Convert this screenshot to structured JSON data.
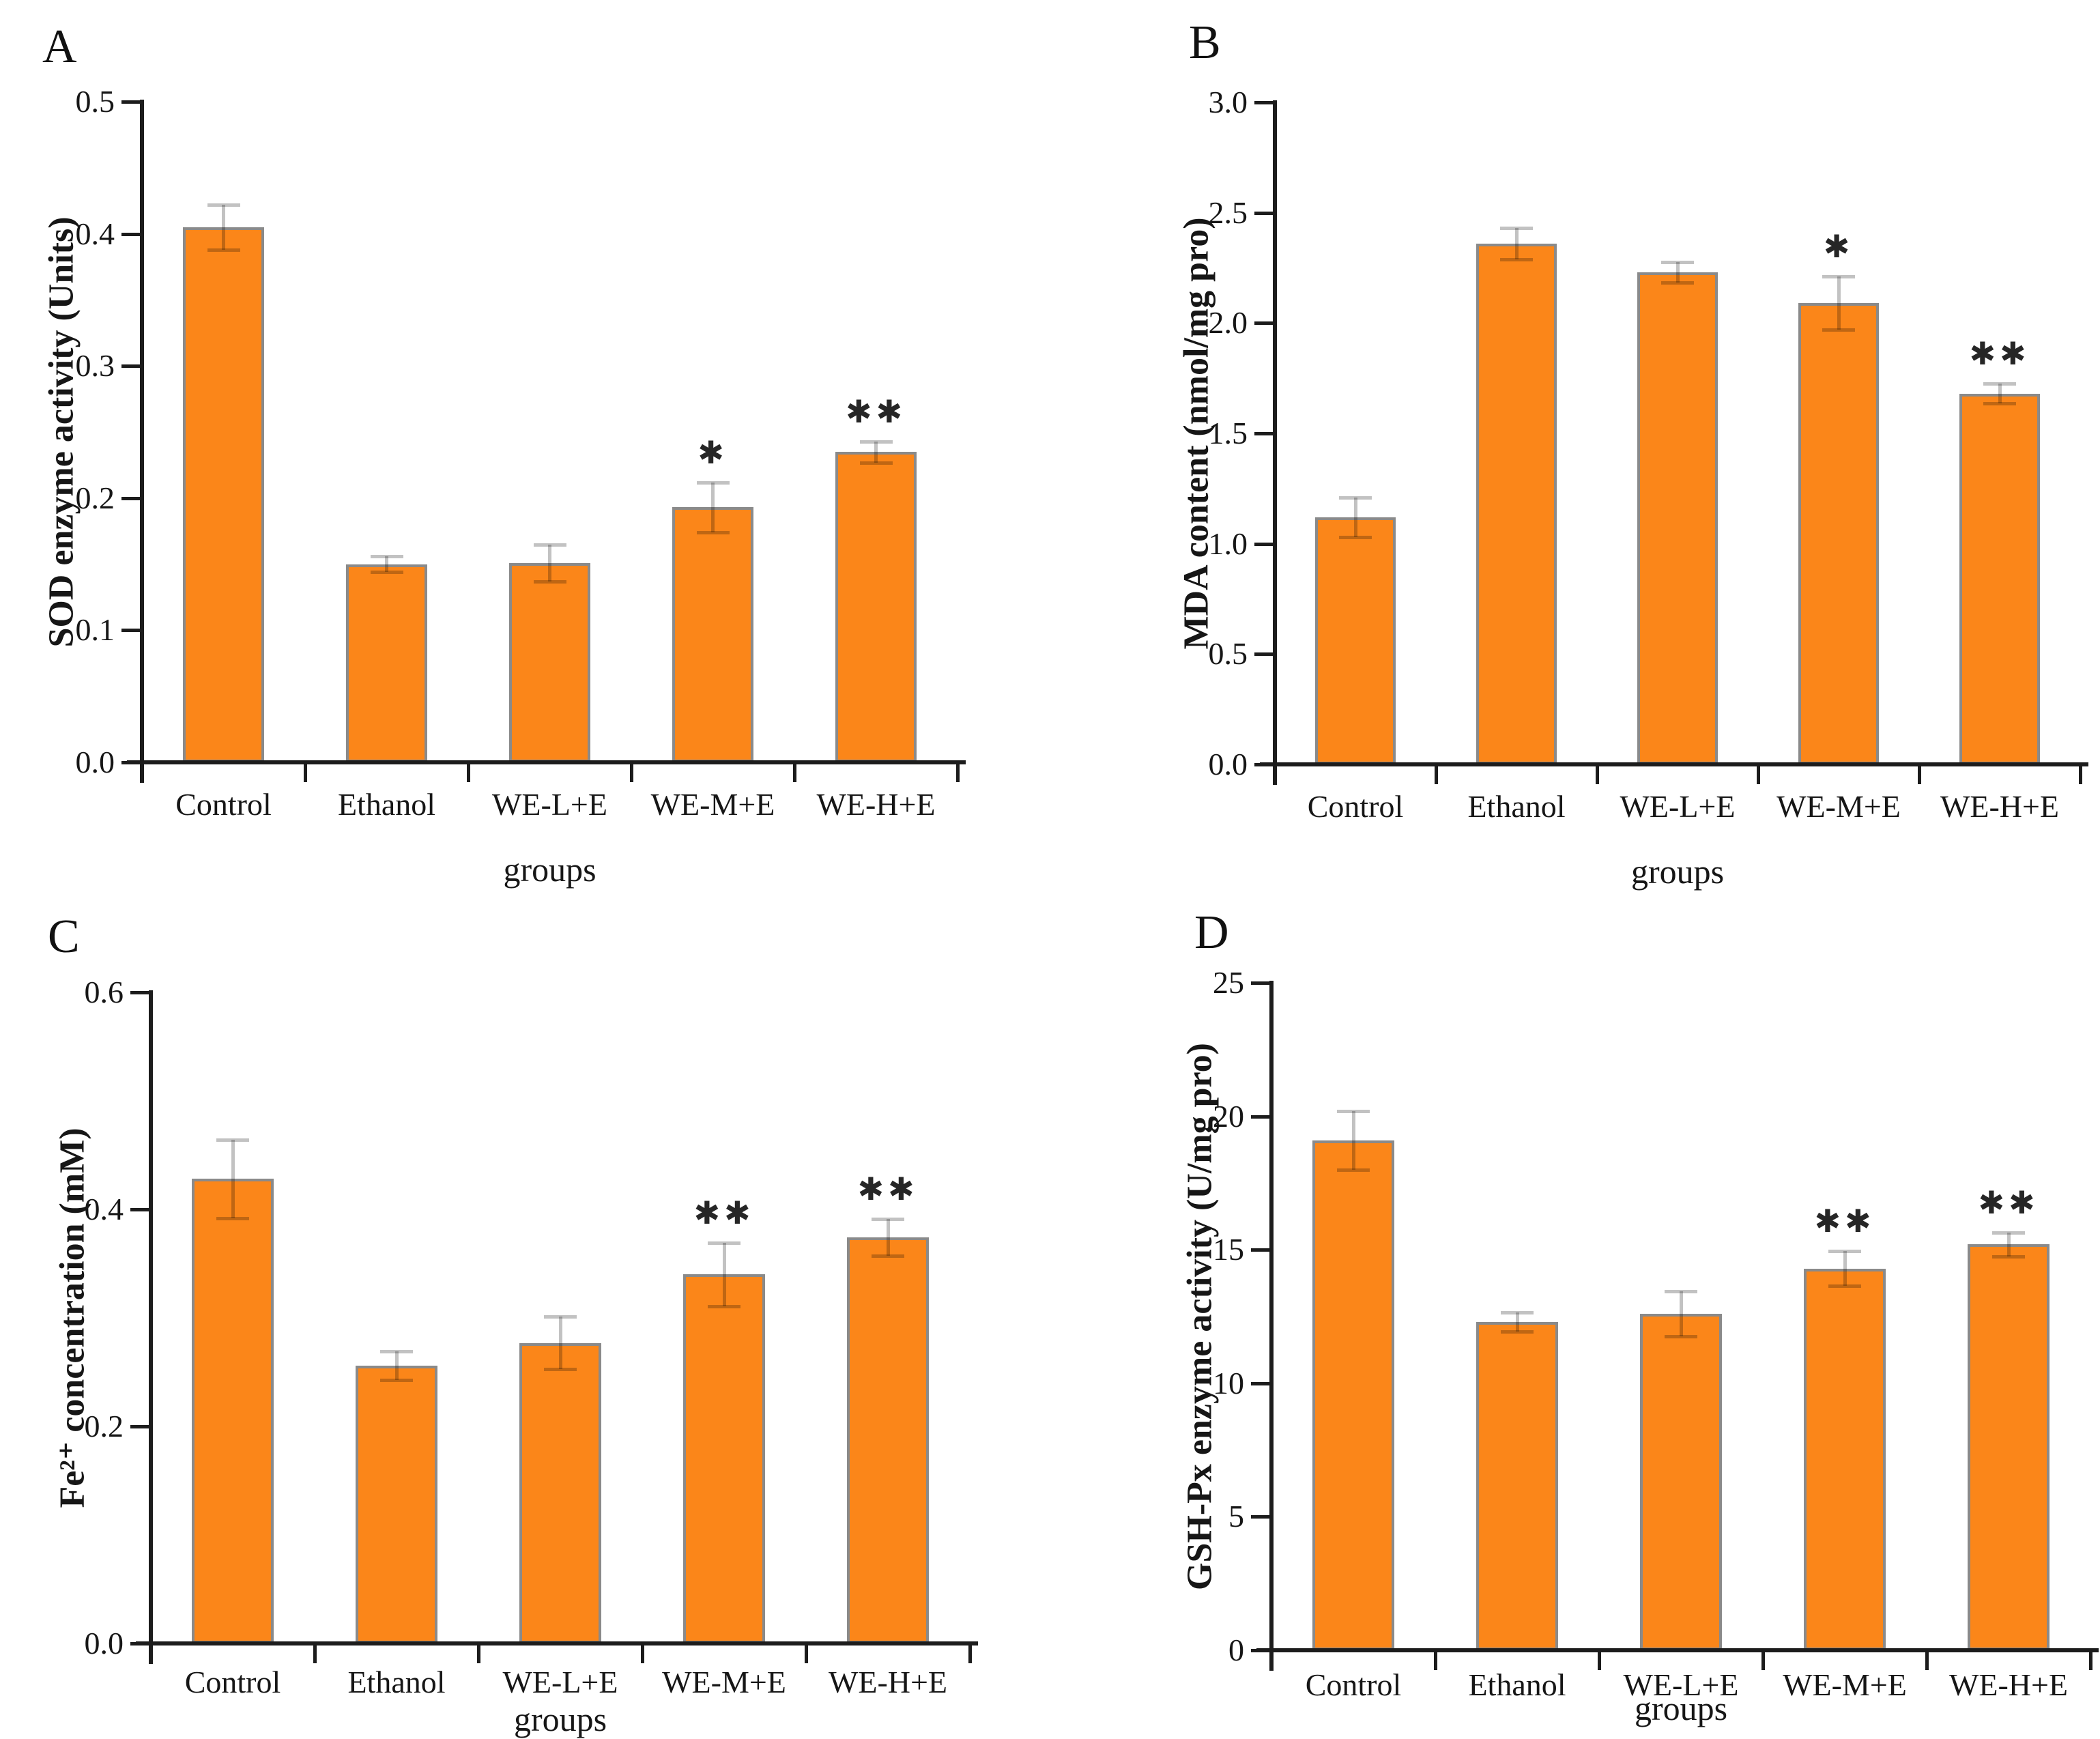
{
  "figure": {
    "background": "#ffffff",
    "bar_fill": "#FB8619",
    "bar_edge": "#8a8a8a",
    "error_bar_color": "#c2c2c2",
    "axis_color": "#1c1c1c",
    "text_color": "#161616"
  },
  "chart_data": [
    {
      "panel": "A",
      "type": "bar",
      "ylabel": "SOD enzyme activity (Units)",
      "xlabel": "groups",
      "categories": [
        "Control",
        "Ethanol",
        "WE-L+E",
        "WE-M+E",
        "WE-H+E"
      ],
      "values": [
        0.405,
        0.15,
        0.151,
        0.193,
        0.235
      ],
      "errors": [
        0.017,
        0.006,
        0.014,
        0.019,
        0.008
      ],
      "significance": [
        "",
        "",
        "",
        "*",
        "**"
      ],
      "ylim": [
        0,
        0.5
      ],
      "yticks": [
        "0.0",
        "0.1",
        "0.2",
        "0.3",
        "0.4",
        "0.5"
      ],
      "grid": false,
      "legend": null
    },
    {
      "panel": "B",
      "type": "bar",
      "ylabel": "MDA content (nmol/mg pro)",
      "xlabel": "groups",
      "categories": [
        "Control",
        "Ethanol",
        "WE-L+E",
        "WE-M+E",
        "WE-H+E"
      ],
      "values": [
        1.12,
        2.36,
        2.23,
        2.09,
        1.68
      ],
      "errors": [
        0.09,
        0.07,
        0.045,
        0.12,
        0.045
      ],
      "significance": [
        "",
        "",
        "",
        "*",
        "**"
      ],
      "ylim": [
        0,
        3.0
      ],
      "yticks": [
        "0.0",
        "0.5",
        "1.0",
        "1.5",
        "2.0",
        "2.5",
        "3.0"
      ],
      "grid": false,
      "legend": null
    },
    {
      "panel": "C",
      "type": "bar",
      "ylabel": "Fe²⁺ concentration (mM)",
      "xlabel": "groups",
      "categories": [
        "Control",
        "Ethanol",
        "WE-L+E",
        "WE-M+E",
        "WE-H+E"
      ],
      "values": [
        0.428,
        0.256,
        0.277,
        0.34,
        0.374
      ],
      "errors": [
        0.036,
        0.013,
        0.024,
        0.029,
        0.017
      ],
      "significance": [
        "",
        "",
        "",
        "**",
        "**"
      ],
      "ylim": [
        0,
        0.6
      ],
      "yticks": [
        "0.0",
        "0.2",
        "0.4",
        "0.6"
      ],
      "grid": false,
      "legend": null
    },
    {
      "panel": "D",
      "type": "bar",
      "ylabel": "GSH-Px enzyme activity (U/mg pro)",
      "xlabel": "groups",
      "categories": [
        "Control",
        "Ethanol",
        "WE-L+E",
        "WE-M+E",
        "WE-H+E"
      ],
      "values": [
        19.1,
        12.3,
        12.6,
        14.3,
        15.2
      ],
      "errors": [
        1.1,
        0.35,
        0.85,
        0.65,
        0.45
      ],
      "significance": [
        "",
        "",
        "",
        "**",
        "**"
      ],
      "ylim": [
        0,
        25
      ],
      "yticks": [
        "0",
        "5",
        "10",
        "15",
        "20",
        "25"
      ],
      "grid": false,
      "legend": null
    }
  ]
}
